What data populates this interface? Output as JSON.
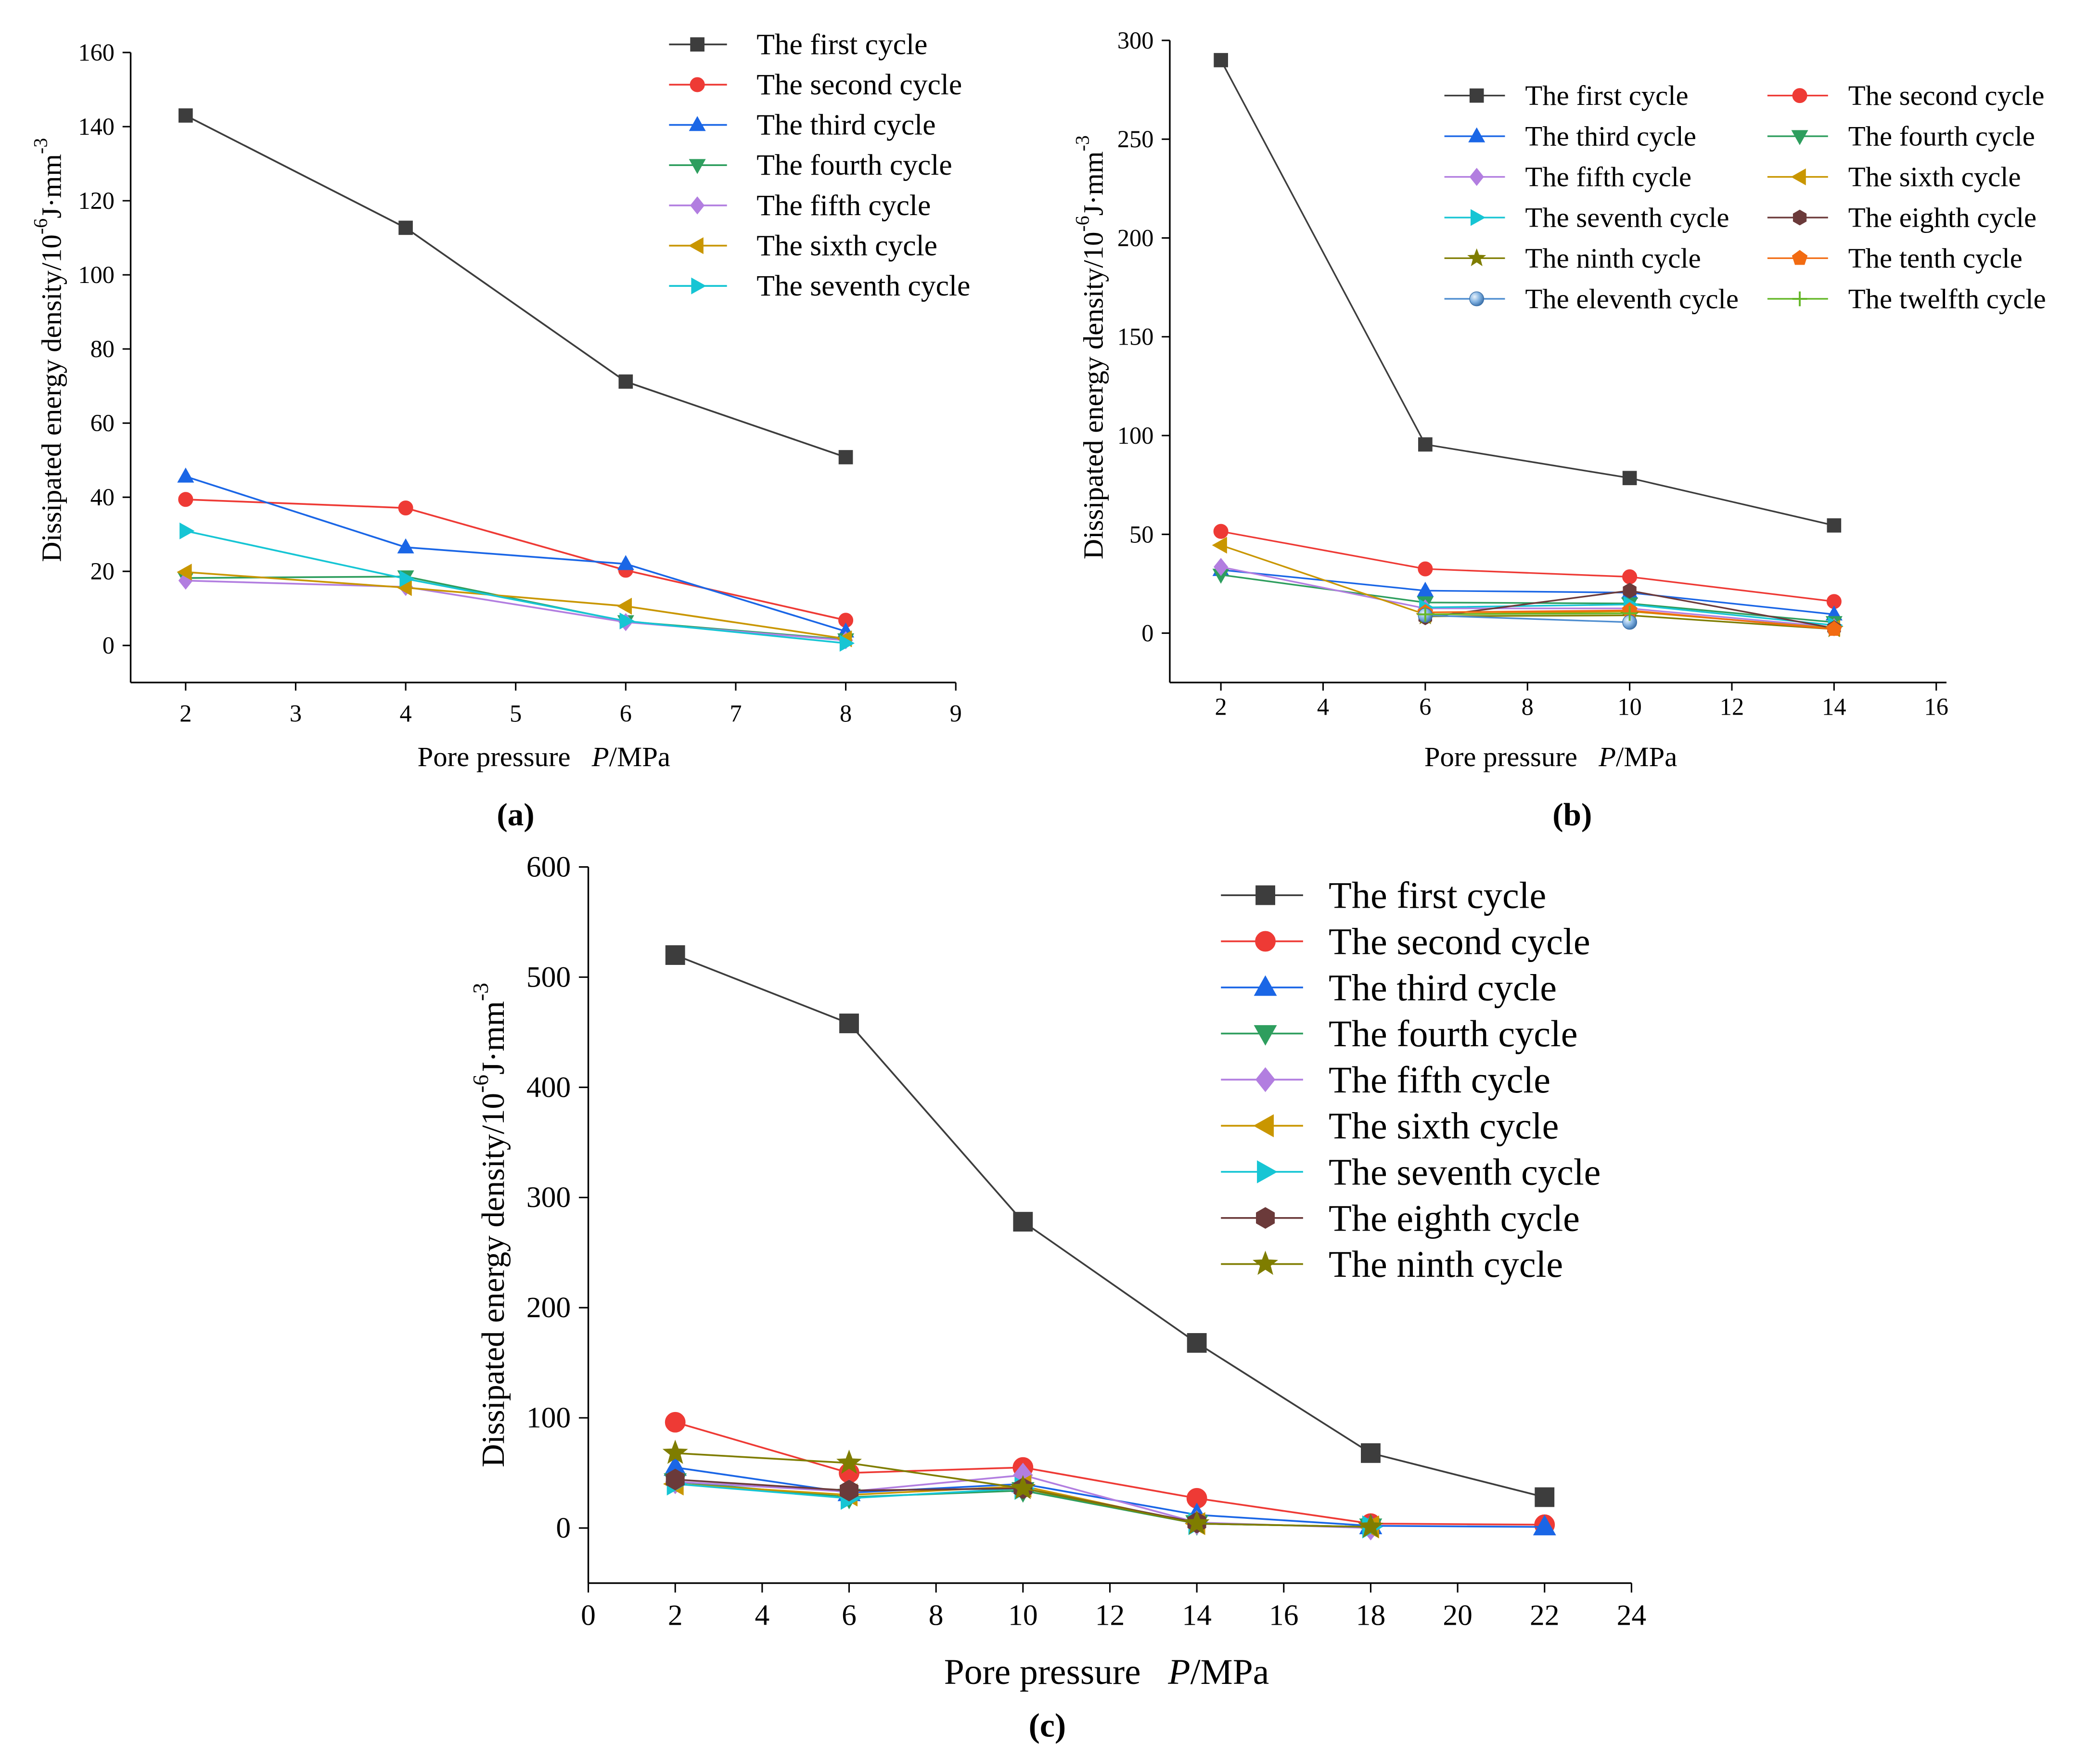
{
  "chart_data": [
    {
      "panel": "(a)",
      "type": "line",
      "xlabel": {
        "text": "Pore pressure",
        "symbol": "P",
        "unit": "/MPa"
      },
      "ylabel": {
        "text": "Dissipated energy density/10",
        "exp1": "-6",
        "unit": "J·mm",
        "exp2": "-3"
      },
      "xlim": [
        1.5,
        9
      ],
      "ylim": [
        -10,
        160
      ],
      "xticks": [
        2,
        3,
        4,
        5,
        6,
        7,
        8,
        9
      ],
      "yticks": [
        0,
        20,
        40,
        60,
        80,
        100,
        120,
        140,
        160
      ],
      "grid": false,
      "legend_position": "top-right",
      "series": [
        {
          "name": "The first cycle",
          "color": "#3d3d3d",
          "marker": "square",
          "x": [
            2,
            4,
            6,
            8
          ],
          "y": [
            143,
            112.7,
            71.2,
            50.8
          ]
        },
        {
          "name": "The second cycle",
          "color": "#ee3a35",
          "marker": "circle",
          "x": [
            2,
            4,
            6,
            8
          ],
          "y": [
            39.4,
            37.1,
            20.3,
            6.8
          ]
        },
        {
          "name": "The third cycle",
          "color": "#1a66e6",
          "marker": "triangle-up",
          "x": [
            2,
            4,
            6,
            8
          ],
          "y": [
            45.6,
            26.5,
            22.0,
            3.8
          ]
        },
        {
          "name": "The fourth cycle",
          "color": "#2e9e5e",
          "marker": "triangle-down",
          "x": [
            2,
            4,
            6,
            8
          ],
          "y": [
            18.2,
            18.6,
            6.5,
            1.6
          ]
        },
        {
          "name": "The fifth cycle",
          "color": "#b27ee0",
          "marker": "diamond",
          "x": [
            2,
            4,
            6,
            8
          ],
          "y": [
            17.5,
            15.8,
            6.3,
            1.4
          ]
        },
        {
          "name": "The sixth cycle",
          "color": "#c99600",
          "marker": "triangle-left",
          "x": [
            2,
            4,
            6,
            8
          ],
          "y": [
            19.8,
            15.6,
            10.6,
            1.8
          ]
        },
        {
          "name": "The seventh cycle",
          "color": "#16c5d4",
          "marker": "triangle-right",
          "x": [
            2,
            4,
            6,
            8
          ],
          "y": [
            30.9,
            18.0,
            6.6,
            0.6
          ]
        }
      ]
    },
    {
      "panel": "(b)",
      "type": "line",
      "xlabel": {
        "text": "Pore pressure",
        "symbol": "P",
        "unit": "/MPa"
      },
      "ylabel": {
        "text": "Dissipated energy density/10",
        "exp1": "-6",
        "unit": "J·mm",
        "exp2": "-3"
      },
      "xlim": [
        1,
        16.2
      ],
      "ylim": [
        -25,
        300
      ],
      "xticks": [
        2,
        4,
        6,
        8,
        10,
        12,
        14,
        16
      ],
      "yticks": [
        0,
        50,
        100,
        150,
        200,
        250,
        300
      ],
      "grid": false,
      "legend_position": "top-right",
      "series": [
        {
          "name": "The first cycle",
          "color": "#3d3d3d",
          "marker": "square",
          "x": [
            2,
            6,
            10,
            14
          ],
          "y": [
            290,
            95.5,
            78.5,
            54.5
          ]
        },
        {
          "name": "The second cycle",
          "color": "#ee3a35",
          "marker": "circle",
          "x": [
            2,
            6,
            10,
            14
          ],
          "y": [
            51.5,
            32.5,
            28.5,
            16
          ]
        },
        {
          "name": "The third cycle",
          "color": "#1a66e6",
          "marker": "triangle-up",
          "x": [
            2,
            6,
            10,
            14
          ],
          "y": [
            32,
            21.5,
            20.5,
            9.5
          ]
        },
        {
          "name": "The fourth cycle",
          "color": "#2e9e5e",
          "marker": "triangle-down",
          "x": [
            2,
            6,
            10,
            14
          ],
          "y": [
            29.5,
            15.5,
            15,
            5.5
          ]
        },
        {
          "name": "The fifth cycle",
          "color": "#b27ee0",
          "marker": "diamond",
          "x": [
            2,
            6,
            10,
            14
          ],
          "y": [
            33.5,
            12.5,
            12.5,
            3
          ]
        },
        {
          "name": "The sixth cycle",
          "color": "#c99600",
          "marker": "triangle-left",
          "x": [
            2,
            6,
            10,
            14
          ],
          "y": [
            44.5,
            9.5,
            11,
            2.5
          ]
        },
        {
          "name": "The seventh cycle",
          "color": "#16c5d4",
          "marker": "triangle-right",
          "x": [
            6,
            10,
            14
          ],
          "y": [
            13,
            14.5,
            4
          ]
        },
        {
          "name": "The eighth cycle",
          "color": "#6b3a3a",
          "marker": "hexagon",
          "x": [
            6,
            10,
            14
          ],
          "y": [
            8,
            21.5,
            2.5
          ]
        },
        {
          "name": "The ninth cycle",
          "color": "#7f7d00",
          "marker": "star",
          "x": [
            6,
            10,
            14
          ],
          "y": [
            8.5,
            9,
            2
          ]
        },
        {
          "name": "The tenth cycle",
          "color": "#f26b12",
          "marker": "pentagon",
          "x": [
            6,
            10,
            14
          ],
          "y": [
            10.5,
            11.5,
            2
          ]
        },
        {
          "name": "The eleventh cycle",
          "color": "#4f8ed0",
          "marker": "sphere",
          "x": [
            6,
            10
          ],
          "y": [
            9,
            5.5
          ]
        },
        {
          "name": "The twelfth cycle",
          "color": "#66b82a",
          "marker": "cross",
          "x": [
            6,
            10
          ],
          "y": [
            9.5,
            10
          ]
        }
      ]
    },
    {
      "panel": "(c)",
      "type": "line",
      "xlabel": {
        "text": "Pore pressure",
        "symbol": "P",
        "unit": "/MPa"
      },
      "ylabel": {
        "text": "Dissipated energy density/10",
        "exp1": "-6",
        "unit": "J·mm",
        "exp2": "-3"
      },
      "xlim": [
        0,
        24
      ],
      "ylim": [
        -50,
        600
      ],
      "xticks": [
        0,
        2,
        4,
        6,
        8,
        10,
        12,
        14,
        16,
        18,
        20,
        22,
        24
      ],
      "yticks": [
        0,
        100,
        200,
        300,
        400,
        500,
        600
      ],
      "grid": false,
      "legend_position": "top-right",
      "series": [
        {
          "name": "The first cycle",
          "color": "#3d3d3d",
          "marker": "square",
          "x": [
            2,
            6,
            10,
            14,
            18,
            22
          ],
          "y": [
            520,
            458,
            278,
            168,
            68,
            28
          ]
        },
        {
          "name": "The second cycle",
          "color": "#ee3a35",
          "marker": "circle",
          "x": [
            2,
            6,
            10,
            14,
            18,
            22
          ],
          "y": [
            96,
            50,
            55,
            27,
            4,
            3
          ]
        },
        {
          "name": "The third cycle",
          "color": "#1a66e6",
          "marker": "triangle-up",
          "x": [
            2,
            6,
            10,
            14,
            18,
            22
          ],
          "y": [
            55,
            32,
            40,
            12,
            2,
            1
          ]
        },
        {
          "name": "The fourth cycle",
          "color": "#2e9e5e",
          "marker": "triangle-down",
          "x": [
            2,
            6,
            10,
            14,
            18
          ],
          "y": [
            42,
            28,
            34,
            4,
            1
          ]
        },
        {
          "name": "The fifth cycle",
          "color": "#b27ee0",
          "marker": "diamond",
          "x": [
            2,
            6,
            10,
            14,
            18
          ],
          "y": [
            42,
            33,
            48,
            5,
            0
          ]
        },
        {
          "name": "The sixth cycle",
          "color": "#c99600",
          "marker": "triangle-left",
          "x": [
            2,
            6,
            10,
            14,
            18
          ],
          "y": [
            40,
            30,
            38,
            4,
            1
          ]
        },
        {
          "name": "The seventh cycle",
          "color": "#16c5d4",
          "marker": "triangle-right",
          "x": [
            2,
            6,
            10,
            14,
            18
          ],
          "y": [
            40,
            27,
            36,
            4,
            1
          ]
        },
        {
          "name": "The eighth cycle",
          "color": "#6b3a3a",
          "marker": "hexagon",
          "x": [
            2,
            6,
            10,
            14
          ],
          "y": [
            44,
            34,
            36,
            5
          ]
        },
        {
          "name": "The ninth cycle",
          "color": "#7f7d00",
          "marker": "star",
          "x": [
            2,
            6,
            10,
            14,
            18
          ],
          "y": [
            68,
            59,
            36,
            4,
            1
          ]
        }
      ]
    }
  ]
}
